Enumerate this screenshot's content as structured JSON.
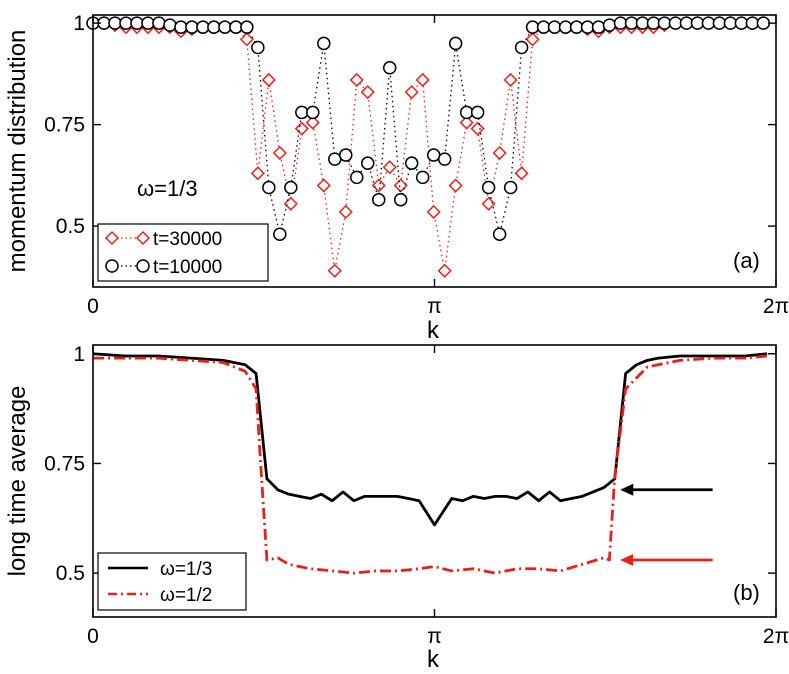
{
  "colors": {
    "red": "#e8201a",
    "black": "#000000"
  },
  "chart_data": [
    {
      "type": "scatter",
      "panel_label": "(a)",
      "annotation": "ω=1/3",
      "xlabel": "k",
      "ylabel": "momentum distribution",
      "xlim": [
        0,
        6.2832
      ],
      "ylim": [
        0.35,
        1.02
      ],
      "xtick_values": [
        0,
        3.1416,
        6.2832
      ],
      "xtick_labels": [
        "0",
        "π",
        "2π"
      ],
      "ytick_values": [
        0.5,
        0.75,
        1
      ],
      "ytick_labels": [
        "0.5",
        "0.75",
        "1"
      ],
      "grid": false,
      "legend_position": "bottom-left",
      "series": [
        {
          "name": "t=30000",
          "marker": "diamond",
          "line": "dotted",
          "color": "#e8201a",
          "x": [
            0,
            0.1011,
            0.2022,
            0.3033,
            0.4044,
            0.5055,
            0.6066,
            0.7077,
            0.8088,
            0.9099,
            1.011,
            1.1121,
            1.2132,
            1.3143,
            1.4154,
            1.5165,
            1.6176,
            1.7187,
            1.8198,
            1.9209,
            2.022,
            2.1231,
            2.2242,
            2.3253,
            2.4264,
            2.5275,
            2.6286,
            2.7297,
            2.8308,
            2.9319,
            3.033,
            3.1341,
            3.2352,
            3.3363,
            3.4374,
            3.5385,
            3.6396,
            3.7407,
            3.8418,
            3.9429,
            4.044,
            4.1451,
            4.2462,
            4.3473,
            4.4484,
            4.5495,
            4.6506,
            4.7517,
            4.8528,
            4.9539,
            5.055,
            5.1561,
            5.2572,
            5.3583,
            5.4594,
            5.5605,
            5.6616,
            5.7627,
            5.8638,
            5.9649,
            6.066,
            6.1671
          ],
          "y": [
            1.0,
            1.0,
            0.995,
            0.99,
            0.99,
            0.99,
            0.99,
            0.99,
            0.98,
            0.985,
            0.99,
            0.99,
            0.99,
            0.99,
            0.96,
            0.63,
            0.86,
            0.68,
            0.555,
            0.74,
            0.755,
            0.6,
            0.39,
            0.535,
            0.86,
            0.83,
            0.6,
            0.645,
            0.6,
            0.83,
            0.86,
            0.535,
            0.39,
            0.6,
            0.755,
            0.74,
            0.555,
            0.68,
            0.86,
            0.63,
            0.96,
            0.99,
            0.99,
            0.99,
            0.99,
            0.985,
            0.98,
            0.99,
            0.99,
            0.99,
            0.99,
            0.99,
            0.995,
            1.0,
            1.0,
            1.0,
            1.0,
            1.0,
            1.0,
            1.0,
            1.0,
            1.0
          ]
        },
        {
          "name": "t=10000",
          "marker": "circle",
          "line": "dotted",
          "color": "#000000",
          "x": [
            0,
            0.1011,
            0.2022,
            0.3033,
            0.4044,
            0.5055,
            0.6066,
            0.7077,
            0.8088,
            0.9099,
            1.011,
            1.1121,
            1.2132,
            1.3143,
            1.4154,
            1.5165,
            1.6176,
            1.7187,
            1.8198,
            1.9209,
            2.022,
            2.1231,
            2.2242,
            2.3253,
            2.4264,
            2.5275,
            2.6286,
            2.7297,
            2.8308,
            2.9319,
            3.033,
            3.1341,
            3.2352,
            3.3363,
            3.4374,
            3.5385,
            3.6396,
            3.7407,
            3.8418,
            3.9429,
            4.044,
            4.1451,
            4.2462,
            4.3473,
            4.4484,
            4.5495,
            4.6506,
            4.7517,
            4.8528,
            4.9539,
            5.055,
            5.1561,
            5.2572,
            5.3583,
            5.4594,
            5.5605,
            5.6616,
            5.7627,
            5.8638,
            5.9649,
            6.066,
            6.1671
          ],
          "y": [
            1.0,
            1.0,
            1.0,
            1.0,
            1.0,
            1.0,
            1.0,
            0.995,
            0.99,
            0.99,
            0.99,
            0.99,
            0.99,
            0.99,
            0.99,
            0.94,
            0.595,
            0.48,
            0.595,
            0.78,
            0.78,
            0.95,
            0.665,
            0.675,
            0.62,
            0.655,
            0.565,
            0.89,
            0.565,
            0.655,
            0.62,
            0.675,
            0.665,
            0.95,
            0.78,
            0.78,
            0.595,
            0.48,
            0.595,
            0.94,
            0.99,
            0.99,
            0.99,
            0.99,
            0.99,
            0.99,
            0.99,
            0.995,
            1.0,
            1.0,
            1.0,
            1.0,
            1.0,
            1.0,
            1.0,
            1.0,
            1.0,
            1.0,
            1.0,
            1.0,
            1.0,
            1.0
          ]
        }
      ]
    },
    {
      "type": "line",
      "panel_label": "(b)",
      "xlabel": "k",
      "ylabel": "long time average",
      "xlim": [
        0,
        6.2832
      ],
      "ylim": [
        0.4,
        1.02
      ],
      "xtick_values": [
        0,
        3.1416,
        6.2832
      ],
      "xtick_labels": [
        "0",
        "π",
        "2π"
      ],
      "ytick_values": [
        0.5,
        0.75,
        1
      ],
      "ytick_labels": [
        "0.5",
        "0.75",
        "1"
      ],
      "grid": false,
      "legend_position": "bottom-left",
      "series": [
        {
          "name": "ω=1/3",
          "line": "solid",
          "color": "#000000",
          "x": [
            0,
            0.3,
            0.6,
            0.9,
            1.2,
            1.4,
            1.5,
            1.6,
            1.7,
            1.8,
            1.9,
            2.0,
            2.1,
            2.2,
            2.3,
            2.4,
            2.5,
            2.6,
            2.7,
            2.8,
            2.9,
            3.0,
            3.1416,
            3.3,
            3.4,
            3.5,
            3.6,
            3.7,
            3.8,
            3.9,
            4.0,
            4.1,
            4.2,
            4.3,
            4.4,
            4.5,
            4.6,
            4.7,
            4.8,
            4.9,
            5.0,
            5.1,
            5.2,
            5.4,
            5.6,
            5.8,
            6.0,
            6.2
          ],
          "y": [
            1.0,
            0.995,
            0.995,
            0.99,
            0.985,
            0.975,
            0.955,
            0.715,
            0.69,
            0.68,
            0.675,
            0.67,
            0.68,
            0.665,
            0.685,
            0.665,
            0.675,
            0.675,
            0.675,
            0.675,
            0.67,
            0.665,
            0.61,
            0.67,
            0.665,
            0.675,
            0.67,
            0.675,
            0.675,
            0.67,
            0.685,
            0.665,
            0.685,
            0.665,
            0.67,
            0.675,
            0.685,
            0.695,
            0.715,
            0.955,
            0.975,
            0.985,
            0.99,
            0.995,
            0.995,
            0.995,
            0.995,
            1.0
          ]
        },
        {
          "name": "ω=1/2",
          "line": "dash-dot",
          "color": "#e8201a",
          "x": [
            0,
            0.3,
            0.6,
            0.9,
            1.2,
            1.4,
            1.5,
            1.55,
            1.6,
            1.7,
            1.8,
            2.0,
            2.2,
            2.4,
            2.6,
            2.8,
            3.0,
            3.1416,
            3.3,
            3.5,
            3.7,
            3.9,
            4.1,
            4.3,
            4.5,
            4.7,
            4.75,
            4.8,
            4.9,
            5.1,
            5.4,
            5.7,
            6.0,
            6.2
          ],
          "y": [
            0.99,
            0.99,
            0.99,
            0.985,
            0.98,
            0.96,
            0.92,
            0.72,
            0.53,
            0.535,
            0.52,
            0.51,
            0.505,
            0.5,
            0.505,
            0.505,
            0.51,
            0.515,
            0.505,
            0.51,
            0.5,
            0.51,
            0.51,
            0.505,
            0.52,
            0.535,
            0.53,
            0.72,
            0.92,
            0.97,
            0.985,
            0.99,
            0.99,
            0.995
          ]
        }
      ],
      "arrows": [
        {
          "color": "#000000",
          "x_from": 5.7,
          "x_to": 4.85,
          "y": 0.69
        },
        {
          "color": "#e8201a",
          "x_from": 5.7,
          "x_to": 4.85,
          "y": 0.53
        }
      ]
    }
  ]
}
